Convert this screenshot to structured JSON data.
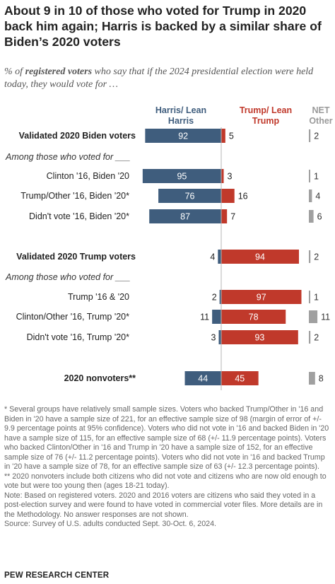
{
  "title": "About 9 in 10 of those who voted for Trump in 2020 back him again; Harris is backed by a similar share of Biden’s 2020 voters",
  "subtitle": {
    "prefix": "% of ",
    "emphasis": "registered voters",
    "suffix": " who say that if the 2024 presidential election were held today, they would vote for …"
  },
  "headers": {
    "harris": "Harris/ Lean Harris",
    "trump": "Trump/ Lean Trump",
    "net_other": "NET Other"
  },
  "colors": {
    "harris": "#3f5d7d",
    "trump": "#c0392b",
    "other": "#a0a0a0",
    "divider": "#b5b5b5"
  },
  "chart_data": {
    "type": "bar",
    "orientation": "horizontal diverging",
    "series": [
      {
        "name": "Harris/Lean Harris",
        "key": "harris"
      },
      {
        "name": "Trump/Lean Trump",
        "key": "trump"
      },
      {
        "name": "NET Other",
        "key": "other"
      }
    ],
    "rows": [
      {
        "label": "Validated 2020 Biden voters",
        "bold": true,
        "harris": 92,
        "trump": 5,
        "other": 2
      },
      {
        "label": "Among those who voted for ___",
        "italic": true
      },
      {
        "label": "Clinton '16, Biden '20",
        "harris": 95,
        "trump": 3,
        "other": 1
      },
      {
        "label": "Trump/Other '16, Biden '20*",
        "harris": 76,
        "trump": 16,
        "other": 4
      },
      {
        "label": "Didn't vote '16, Biden '20*",
        "harris": 87,
        "trump": 7,
        "other": 6
      },
      {
        "label": "Validated 2020 Trump voters",
        "bold": true,
        "harris": 4,
        "trump": 94,
        "other": 2
      },
      {
        "label": "Among those who voted for ___",
        "italic": true
      },
      {
        "label": "Trump '16 & '20",
        "harris": 2,
        "trump": 97,
        "other": 1
      },
      {
        "label": "Clinton/Other '16, Trump '20*",
        "harris": 11,
        "trump": 78,
        "other": 11
      },
      {
        "label": "Didn't vote '16, Trump '20*",
        "harris": 3,
        "trump": 93,
        "other": 2
      },
      {
        "label": "2020 nonvoters**",
        "bold": true,
        "harris": 44,
        "trump": 45,
        "other": 8
      }
    ]
  },
  "footnotes": [
    "* Several groups have relatively small sample sizes. Voters who backed Trump/Other in '16 and Biden in '20 have a sample size of 221, for an effective sample size of 98 (margin of error of +/- 9.9 percentage points at 95% confidence). Voters who did not vote in '16 and backed Biden in '20 have a sample size of 115, for an effective sample size of 68 (+/- 11.9 percentage points). Voters who backed Clinton/Other in '16 and Trump in '20 have a sample size of 152, for an effective sample size of 76 (+/- 11.2 percentage points). Voters who did not vote in '16 and backed Trump in '20 have a sample size of 78, for an effective sample size of 63 (+/- 12.3 percentage points).",
    "** 2020 nonvoters include both citizens who did not vote and citizens who are now old enough to vote but were too young then (ages 18-21 today).",
    "Note: Based on registered voters. 2020 and 2016 voters are citizens who said they voted in a post-election survey and were found to have voted in commercial voter files. More details are in the Methodology. No answer responses are not shown.",
    "Source: Survey of U.S. adults conducted Sept. 30-Oct. 6, 2024."
  ],
  "source_logo": "PEW RESEARCH CENTER"
}
